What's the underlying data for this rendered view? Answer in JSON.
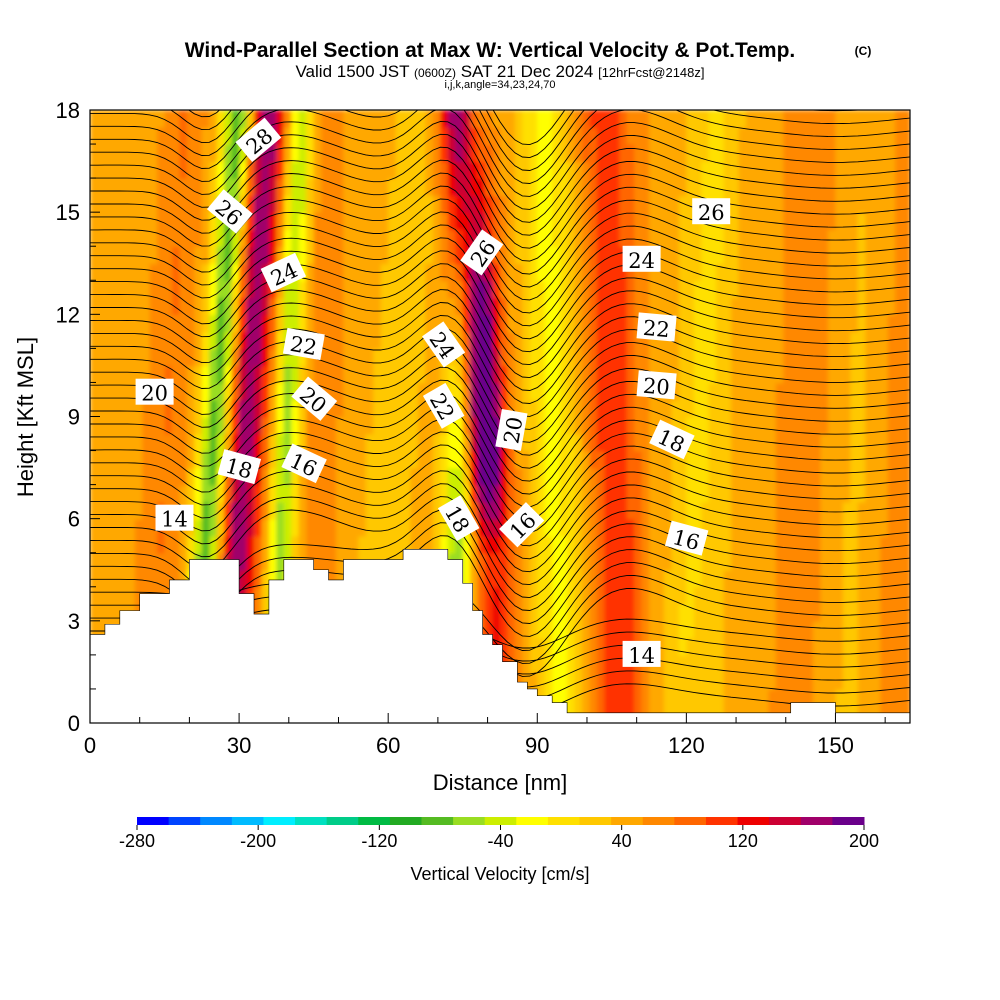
{
  "title": {
    "main": "Wind-Parallel Section at Max W: Vertical Velocity & Pot.Temp.",
    "copyright": "(C)",
    "valid_a": "Valid 1500 JST",
    "valid_z": "(0600Z)",
    "valid_b": "SAT 21 Dec 2024",
    "valid_fcst": "[12hrFcst@2148z]",
    "params": "i,j,k,angle=34,23,24,70"
  },
  "chart_data": {
    "type": "heatmap",
    "xlabel": "Distance [nm]",
    "ylabel": "Height [Kft MSL]",
    "xlim": [
      0,
      165
    ],
    "ylim": [
      0,
      18
    ],
    "x_ticks": [
      "0",
      "30",
      "60",
      "90",
      "120",
      "150"
    ],
    "x_tick_values": [
      0,
      30,
      60,
      90,
      120,
      150
    ],
    "y_ticks": [
      "0",
      "3",
      "6",
      "9",
      "12",
      "15",
      "18"
    ],
    "y_tick_values": [
      0,
      3,
      6,
      9,
      12,
      15,
      18
    ],
    "colorbar": {
      "label": "Vertical Velocity [cm/s]",
      "ticks": [
        "-280",
        "-200",
        "-120",
        "-40",
        "40",
        "120",
        "200"
      ],
      "tick_values": [
        -280,
        -200,
        -120,
        -40,
        40,
        120,
        200
      ],
      "range": [
        -280,
        200
      ],
      "colors": [
        "#0000ff",
        "#0044ff",
        "#0088ff",
        "#00bbff",
        "#00eeff",
        "#00e0c0",
        "#00cc88",
        "#00bb44",
        "#22aa22",
        "#55bb22",
        "#99dd22",
        "#ccee00",
        "#ffff00",
        "#ffe000",
        "#ffc800",
        "#ffa800",
        "#ff8800",
        "#ff6600",
        "#ff3300",
        "#ee0000",
        "#cc0033",
        "#a0006a",
        "#6a008a"
      ]
    },
    "terrain_kft": [
      [
        0,
        2.6
      ],
      [
        3,
        2.9
      ],
      [
        6,
        3.3
      ],
      [
        10,
        3.8
      ],
      [
        16,
        4.2
      ],
      [
        20,
        4.8
      ],
      [
        24,
        4.8
      ],
      [
        27,
        4.8
      ],
      [
        30,
        3.8
      ],
      [
        33,
        3.2
      ],
      [
        36,
        4.2
      ],
      [
        39,
        4.8
      ],
      [
        42,
        4.8
      ],
      [
        45,
        4.5
      ],
      [
        48,
        4.2
      ],
      [
        51,
        4.8
      ],
      [
        57,
        4.8
      ],
      [
        60,
        4.8
      ],
      [
        63,
        5.1
      ],
      [
        69,
        5.1
      ],
      [
        72,
        4.8
      ],
      [
        75,
        4.1
      ],
      [
        77,
        3.3
      ],
      [
        79,
        2.6
      ],
      [
        81,
        2.3
      ],
      [
        83,
        1.8
      ],
      [
        86,
        1.2
      ],
      [
        88,
        1.0
      ],
      [
        90,
        0.8
      ],
      [
        93,
        0.6
      ],
      [
        96,
        0.3
      ],
      [
        100,
        0.3
      ],
      [
        138,
        0.3
      ],
      [
        141,
        0.6
      ],
      [
        147,
        0.6
      ],
      [
        150,
        0.3
      ],
      [
        165,
        0.3
      ]
    ],
    "theta_contour_labels": [
      "28",
      "26",
      "24",
      "22",
      "20",
      "18",
      "16",
      "14",
      "26",
      "24",
      "22",
      "20",
      "18",
      "16",
      "20",
      "26",
      "24",
      "22",
      "20",
      "18",
      "16",
      "14"
    ],
    "theta_label_points": [
      [
        34,
        17.1
      ],
      [
        28,
        15.0
      ],
      [
        39,
        13.2
      ],
      [
        43,
        11.1
      ],
      [
        45,
        9.5
      ],
      [
        30,
        7.5
      ],
      [
        43,
        7.6
      ],
      [
        17,
        6.0
      ],
      [
        79,
        13.8
      ],
      [
        71,
        11.1
      ],
      [
        71,
        9.3
      ],
      [
        85,
        8.6
      ],
      [
        74,
        6.0
      ],
      [
        87,
        5.8
      ],
      [
        13,
        9.7
      ],
      [
        125,
        15.0
      ],
      [
        111,
        13.6
      ],
      [
        114,
        11.6
      ],
      [
        114,
        9.9
      ],
      [
        117,
        8.3
      ],
      [
        120,
        5.4
      ],
      [
        111,
        2.0
      ]
    ],
    "theta_label_angles": [
      -40,
      40,
      -25,
      10,
      40,
      15,
      25,
      0,
      -55,
      55,
      60,
      -80,
      60,
      -45,
      0,
      0,
      0,
      5,
      5,
      25,
      15,
      0
    ]
  }
}
